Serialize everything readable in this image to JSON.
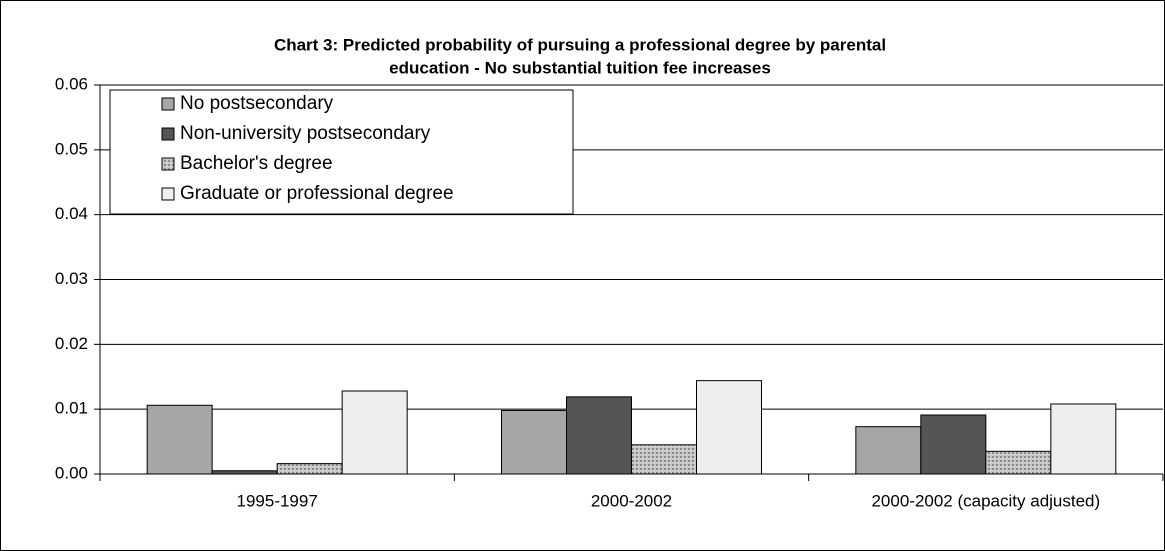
{
  "chart_data": {
    "type": "bar",
    "title": [
      "Chart 3: Predicted probability of pursuing a professional degree by parental",
      "education - No substantial tuition fee increases"
    ],
    "categories": [
      "1995-1997",
      "2000-2002",
      "2000-2002 (capacity adjusted)"
    ],
    "series": [
      {
        "name": "No postsecondary",
        "color": "#a6a6a6",
        "values": [
          0.0106,
          0.0098,
          0.0073
        ]
      },
      {
        "name": "Non-university postsecondary",
        "color": "#555555",
        "values": [
          0.0005,
          0.0119,
          0.0091
        ]
      },
      {
        "name": "Bachelor's degree",
        "color": "#b4b4b4",
        "values": [
          0.0016,
          0.0045,
          0.0035
        ]
      },
      {
        "name": "Graduate or professional degree",
        "color": "#eeeeee",
        "values": [
          0.0128,
          0.0144,
          0.0108
        ]
      }
    ],
    "ylim": [
      0,
      0.06
    ],
    "yticks": [
      {
        "value": 0,
        "label": "0.00"
      },
      0.01,
      0.02,
      0.03,
      0.04,
      0.05,
      0.06
    ],
    "grid": true,
    "legend": "upper left"
  }
}
